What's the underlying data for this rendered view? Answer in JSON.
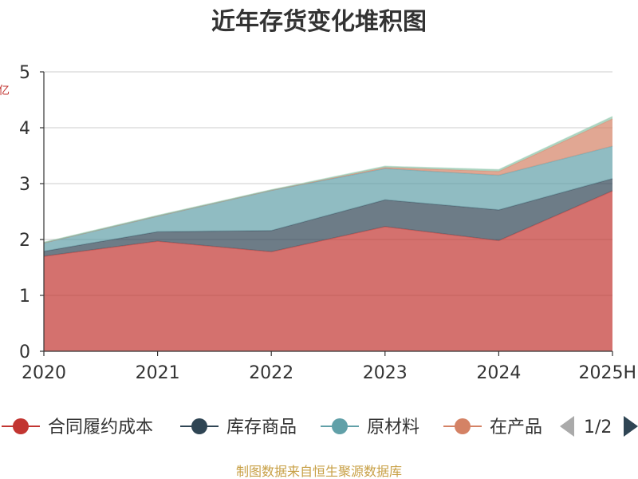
{
  "chart_data": {
    "type": "area",
    "stacked": true,
    "title": "近年存货变化堆积图",
    "x": [
      "2020",
      "2021",
      "2022",
      "2023",
      "2024",
      "2025H"
    ],
    "ylim": [
      0,
      5
    ],
    "yticks": [
      0,
      1,
      2,
      3,
      4,
      5
    ],
    "grid": true,
    "legend_position": "bottom",
    "series": [
      {
        "name": "合同履约成本",
        "color": "#c23531",
        "values": [
          1.7,
          1.97,
          1.78,
          2.23,
          1.98,
          2.87
        ]
      },
      {
        "name": "库存商品",
        "color": "#2f4554",
        "values": [
          0.09,
          0.17,
          0.38,
          0.48,
          0.55,
          0.22
        ]
      },
      {
        "name": "原材料",
        "color": "#61a0a8",
        "values": [
          0.15,
          0.28,
          0.72,
          0.56,
          0.62,
          0.58
        ]
      },
      {
        "name": "在产品",
        "color": "#d48265",
        "values": [
          0.0,
          0.0,
          0.0,
          0.02,
          0.07,
          0.49
        ]
      },
      {
        "name": "",
        "color": "#91c7ae",
        "values": [
          0.01,
          0.01,
          0.01,
          0.02,
          0.03,
          0.04
        ]
      }
    ]
  },
  "legend": {
    "items": [
      "合同履约成本",
      "库存商品",
      "原材料",
      "在产品"
    ],
    "page": "1/2"
  },
  "source_note": "制图数据来自恒生聚源数据库",
  "icons": {
    "prev": "triangle-left-icon",
    "next": "triangle-right-icon"
  }
}
